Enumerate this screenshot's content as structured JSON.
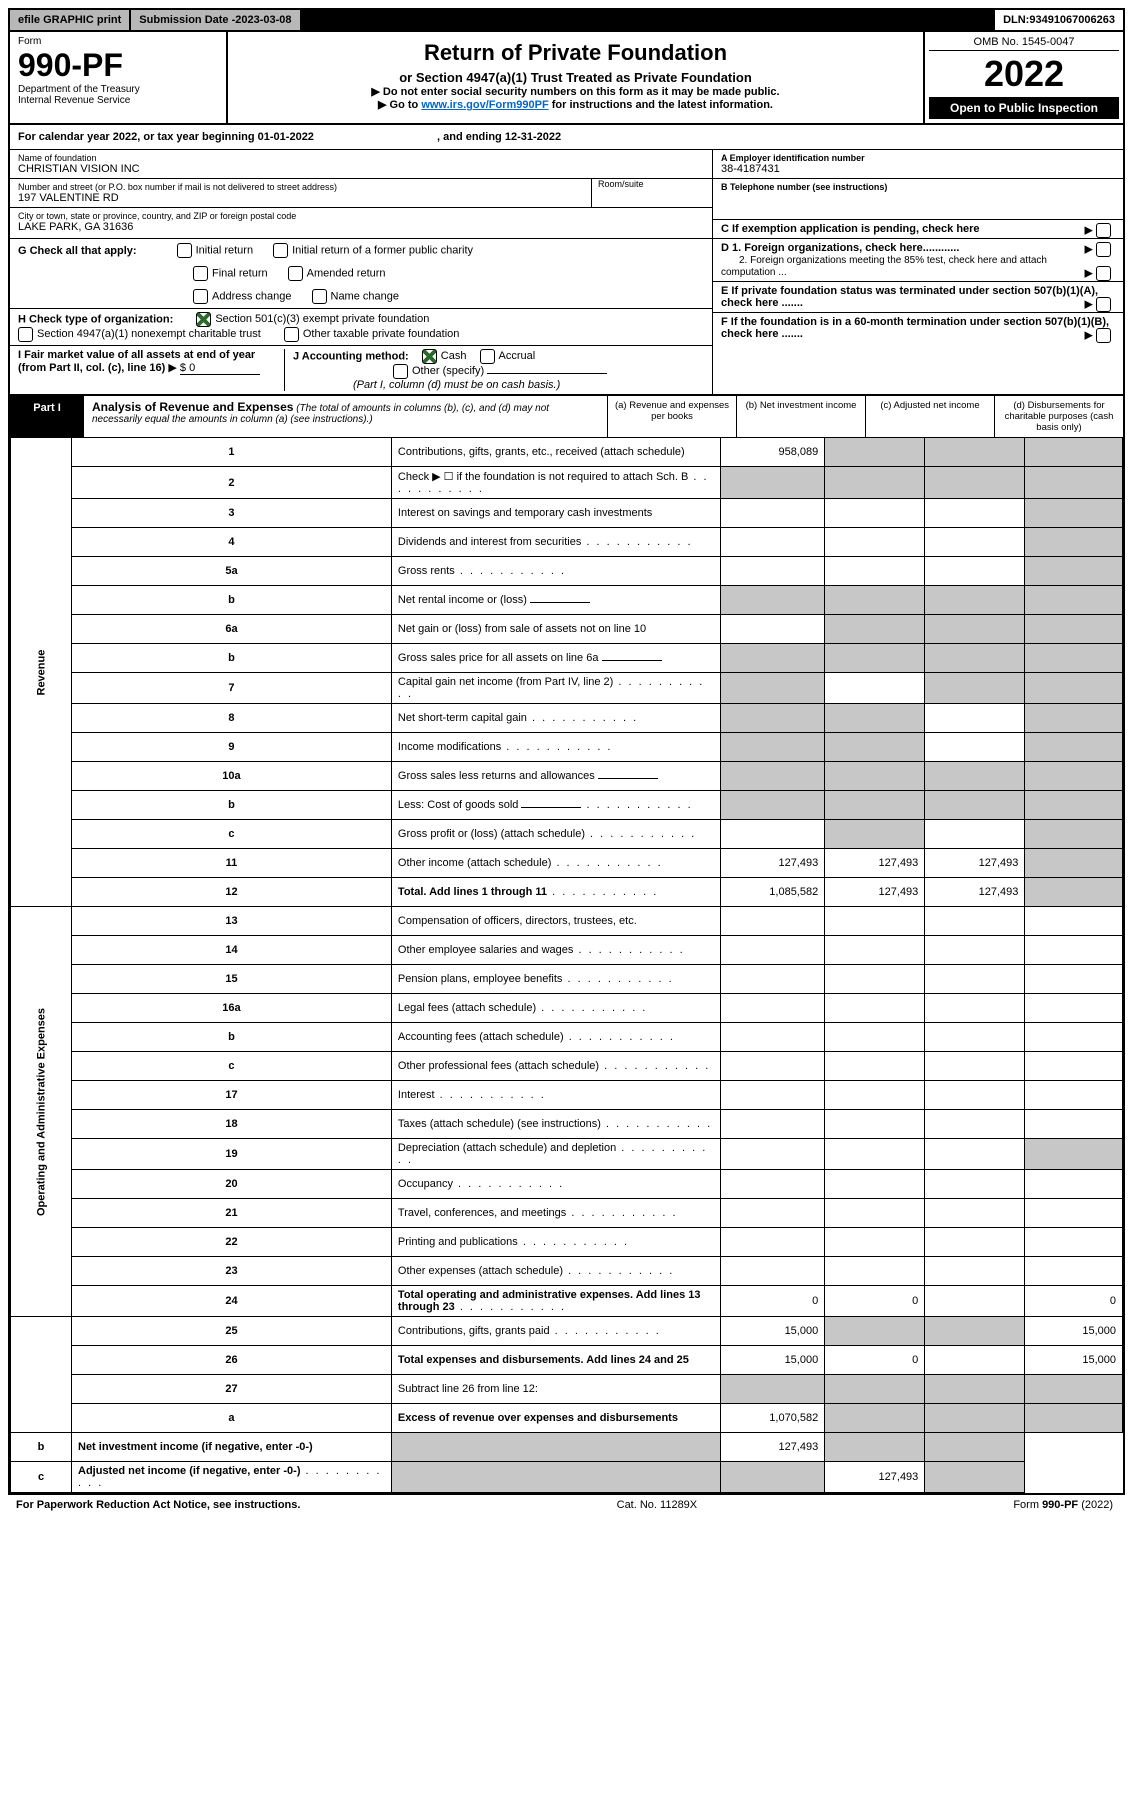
{
  "topbar": {
    "efile": "efile GRAPHIC print",
    "subLabel": "Submission Date - ",
    "subDate": "2023-03-08",
    "dlnLabel": "DLN: ",
    "dln": "93491067006263"
  },
  "header": {
    "formLabel": "Form",
    "formNo": "990-PF",
    "dept": "Department of the Treasury",
    "irs": "Internal Revenue Service",
    "title": "Return of Private Foundation",
    "subtitle": "or Section 4947(a)(1) Trust Treated as Private Foundation",
    "instr1": "▶ Do not enter social security numbers on this form as it may be made public.",
    "instr2_a": "▶ Go to ",
    "instr2_link": "www.irs.gov/Form990PF",
    "instr2_b": " for instructions and the latest information.",
    "omb": "OMB No. 1545-0047",
    "year": "2022",
    "open": "Open to Public Inspection"
  },
  "calYear": {
    "a": "For calendar year 2022, or tax year beginning ",
    "begin": "01-01-2022",
    "b": " , and ending ",
    "end": "12-31-2022"
  },
  "entity": {
    "nameLabel": "Name of foundation",
    "name": "CHRISTIAN VISION INC",
    "addrLabel": "Number and street (or P.O. box number if mail is not delivered to street address)",
    "addr": "197 VALENTINE RD",
    "roomLabel": "Room/suite",
    "cityLabel": "City or town, state or province, country, and ZIP or foreign postal code",
    "city": "LAKE PARK, GA  31636",
    "einLabel": "A Employer identification number",
    "ein": "38-4187431",
    "telLabel": "B Telephone number (see instructions)",
    "cLabel": "C If exemption application is pending, check here",
    "d1": "D 1. Foreign organizations, check here............",
    "d2": "2. Foreign organizations meeting the 85% test, check here and attach computation ...",
    "e": "E  If private foundation status was terminated under section 507(b)(1)(A), check here .......",
    "f": "F  If the foundation is in a 60-month termination under section 507(b)(1)(B), check here ......."
  },
  "g": {
    "label": "G Check all that apply:",
    "opts": [
      "Initial return",
      "Initial return of a former public charity",
      "Final return",
      "Amended return",
      "Address change",
      "Name change"
    ]
  },
  "h": {
    "label": "H Check type of organization:",
    "o1": "Section 501(c)(3) exempt private foundation",
    "o2": "Section 4947(a)(1) nonexempt charitable trust",
    "o3": "Other taxable private foundation"
  },
  "i": {
    "a": "I Fair market value of all assets at end of year (from Part II, col. (c), line 16)",
    "arrow": "▶",
    "val": "$  0"
  },
  "j": {
    "label": "J Accounting method:",
    "cash": "Cash",
    "accrual": "Accrual",
    "other": "Other (specify)",
    "note": "(Part I, column (d) must be on cash basis.)"
  },
  "partI": {
    "label": "Part I",
    "title": "Analysis of Revenue and Expenses",
    "titleItal": " (The total of amounts in columns (b), (c), and (d) may not necessarily equal the amounts in column (a) (see instructions).)",
    "colA": "(a)  Revenue and expenses per books",
    "colB": "(b)  Net investment income",
    "colC": "(c)  Adjusted net income",
    "colD": "(d)  Disbursements for charitable purposes (cash basis only)"
  },
  "sideLabels": {
    "rev": "Revenue",
    "opex": "Operating and Administrative Expenses"
  },
  "rows": [
    {
      "n": "1",
      "d": "Contributions, gifts, grants, etc., received (attach schedule)",
      "a": "958,089",
      "gb": true,
      "gc": true,
      "gd": true
    },
    {
      "n": "2",
      "d": "Check ▶ ☐ if the foundation is not required to attach Sch. B",
      "dots": true,
      "ga": true,
      "gb": true,
      "gc": true,
      "gd": true
    },
    {
      "n": "3",
      "d": "Interest on savings and temporary cash investments",
      "gd": true
    },
    {
      "n": "4",
      "d": "Dividends and interest from securities",
      "dots": true,
      "gd": true
    },
    {
      "n": "5a",
      "d": "Gross rents",
      "dots": true,
      "gd": true
    },
    {
      "n": "b",
      "d": "Net rental income or (loss)",
      "ga": true,
      "gb": true,
      "gc": true,
      "gd": true,
      "short": true
    },
    {
      "n": "6a",
      "d": "Net gain or (loss) from sale of assets not on line 10",
      "gb": true,
      "gc": true,
      "gd": true
    },
    {
      "n": "b",
      "d": "Gross sales price for all assets on line 6a",
      "ga": true,
      "gb": true,
      "gc": true,
      "gd": true,
      "short": true
    },
    {
      "n": "7",
      "d": "Capital gain net income (from Part IV, line 2)",
      "dots": true,
      "ga": true,
      "gc": true,
      "gd": true
    },
    {
      "n": "8",
      "d": "Net short-term capital gain",
      "dots": true,
      "ga": true,
      "gb": true,
      "gd": true
    },
    {
      "n": "9",
      "d": "Income modifications",
      "dots": true,
      "ga": true,
      "gb": true,
      "gd": true
    },
    {
      "n": "10a",
      "d": "Gross sales less returns and allowances",
      "short": true,
      "ga": true,
      "gb": true,
      "gc": true,
      "gd": true
    },
    {
      "n": "b",
      "d": "Less: Cost of goods sold",
      "dots": true,
      "short": true,
      "ga": true,
      "gb": true,
      "gc": true,
      "gd": true
    },
    {
      "n": "c",
      "d": "Gross profit or (loss) (attach schedule)",
      "dots": true,
      "gb": true,
      "gd": true
    },
    {
      "n": "11",
      "d": "Other income (attach schedule)",
      "dots": true,
      "a": "127,493",
      "b": "127,493",
      "c": "127,493",
      "gd": true
    },
    {
      "n": "12",
      "d": "Total. Add lines 1 through 11",
      "dots": true,
      "bold": true,
      "a": "1,085,582",
      "b": "127,493",
      "c": "127,493",
      "gd": true
    },
    {
      "n": "13",
      "d": "Compensation of officers, directors, trustees, etc."
    },
    {
      "n": "14",
      "d": "Other employee salaries and wages",
      "dots": true
    },
    {
      "n": "15",
      "d": "Pension plans, employee benefits",
      "dots": true
    },
    {
      "n": "16a",
      "d": "Legal fees (attach schedule)",
      "dots": true
    },
    {
      "n": "b",
      "d": "Accounting fees (attach schedule)",
      "dots": true
    },
    {
      "n": "c",
      "d": "Other professional fees (attach schedule)",
      "dots": true
    },
    {
      "n": "17",
      "d": "Interest",
      "dots": true
    },
    {
      "n": "18",
      "d": "Taxes (attach schedule) (see instructions)",
      "dots": true
    },
    {
      "n": "19",
      "d": "Depreciation (attach schedule) and depletion",
      "dots": true,
      "gd": true
    },
    {
      "n": "20",
      "d": "Occupancy",
      "dots": true
    },
    {
      "n": "21",
      "d": "Travel, conferences, and meetings",
      "dots": true
    },
    {
      "n": "22",
      "d": "Printing and publications",
      "dots": true
    },
    {
      "n": "23",
      "d": "Other expenses (attach schedule)",
      "dots": true
    },
    {
      "n": "24",
      "d": "Total operating and administrative expenses. Add lines 13 through 23",
      "dots": true,
      "bold": true,
      "a": "0",
      "b": "0",
      "dV": "0"
    },
    {
      "n": "25",
      "d": "Contributions, gifts, grants paid",
      "dots": true,
      "a": "15,000",
      "gb": true,
      "gc": true,
      "dV": "15,000"
    },
    {
      "n": "26",
      "d": "Total expenses and disbursements. Add lines 24 and 25",
      "bold": true,
      "a": "15,000",
      "b": "0",
      "dV": "15,000"
    },
    {
      "n": "27",
      "d": "Subtract line 26 from line 12:",
      "ga": true,
      "gb": true,
      "gc": true,
      "gd": true
    },
    {
      "n": "a",
      "d": "Excess of revenue over expenses and disbursements",
      "bold": true,
      "a": "1,070,582",
      "gb": true,
      "gc": true,
      "gd": true
    },
    {
      "n": "b",
      "d": "Net investment income (if negative, enter -0-)",
      "bold": true,
      "ga": true,
      "b": "127,493",
      "gc": true,
      "gd": true
    },
    {
      "n": "c",
      "d": "Adjusted net income (if negative, enter -0-)",
      "dots": true,
      "bold": true,
      "ga": true,
      "gb": true,
      "c": "127,493",
      "gd": true
    }
  ],
  "footer": {
    "left": "For Paperwork Reduction Act Notice, see instructions.",
    "mid": "Cat. No. 11289X",
    "rightA": "Form ",
    "rightB": "990-PF",
    "rightC": " (2022)"
  }
}
